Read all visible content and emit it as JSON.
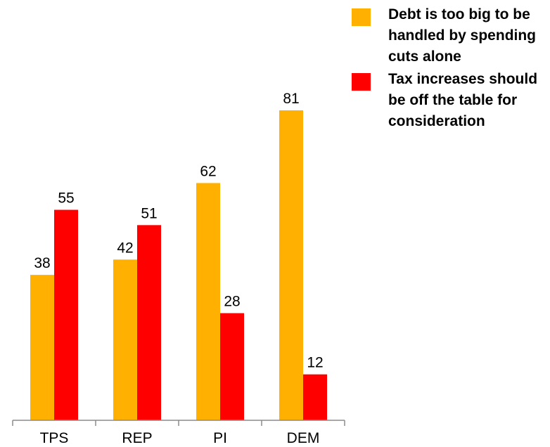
{
  "chart_data": {
    "type": "bar",
    "categories": [
      "TPS",
      "REP",
      "PI",
      "DEM"
    ],
    "series": [
      {
        "name": "Debt is too big to be handled by spending cuts alone",
        "values": [
          38,
          42,
          62,
          81
        ],
        "color": "#FFB000"
      },
      {
        "name": "Tax increases should be off the table for consideration",
        "values": [
          55,
          51,
          28,
          12
        ],
        "color": "#FF0000"
      }
    ],
    "title": "",
    "xlabel": "",
    "ylabel": "",
    "ylim": [
      0,
      100
    ],
    "grid": false,
    "legend_position": "top-right"
  }
}
